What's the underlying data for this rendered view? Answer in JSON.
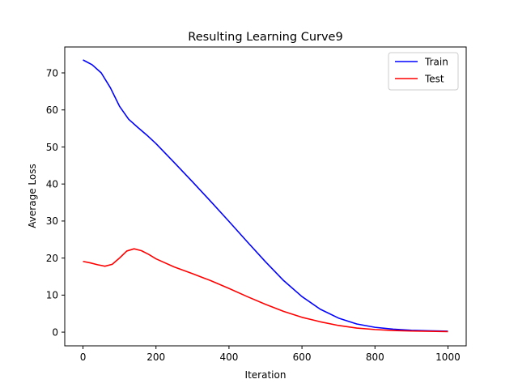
{
  "chart_data": {
    "type": "line",
    "title": "Resulting Learning Curve9",
    "xlabel": "Iteration",
    "ylabel": "Average Loss",
    "xlim": [
      -50,
      1050
    ],
    "ylim": [
      -3.7,
      77
    ],
    "xticks": [
      0,
      200,
      400,
      600,
      800,
      1000
    ],
    "yticks": [
      0,
      10,
      20,
      30,
      40,
      50,
      60,
      70
    ],
    "grid": false,
    "legend_position": "top-right",
    "series": [
      {
        "name": "Train",
        "color": "#0000ff",
        "points": [
          [
            0,
            73.5
          ],
          [
            25,
            72.2
          ],
          [
            50,
            70.0
          ],
          [
            75,
            66.0
          ],
          [
            100,
            61.0
          ],
          [
            125,
            57.5
          ],
          [
            150,
            55.3
          ],
          [
            175,
            53.2
          ],
          [
            200,
            50.9
          ],
          [
            250,
            45.8
          ],
          [
            300,
            40.6
          ],
          [
            350,
            35.3
          ],
          [
            400,
            29.9
          ],
          [
            450,
            24.4
          ],
          [
            500,
            19.0
          ],
          [
            550,
            13.9
          ],
          [
            600,
            9.6
          ],
          [
            650,
            6.2
          ],
          [
            700,
            3.8
          ],
          [
            750,
            2.2
          ],
          [
            800,
            1.3
          ],
          [
            850,
            0.8
          ],
          [
            900,
            0.5
          ],
          [
            950,
            0.35
          ],
          [
            1000,
            0.25
          ]
        ]
      },
      {
        "name": "Test",
        "color": "#ff0000",
        "points": [
          [
            0,
            19.1
          ],
          [
            20,
            18.7
          ],
          [
            40,
            18.2
          ],
          [
            60,
            17.8
          ],
          [
            80,
            18.3
          ],
          [
            100,
            20.0
          ],
          [
            120,
            21.9
          ],
          [
            140,
            22.5
          ],
          [
            160,
            22.0
          ],
          [
            180,
            21.0
          ],
          [
            200,
            19.8
          ],
          [
            250,
            17.6
          ],
          [
            300,
            15.8
          ],
          [
            350,
            13.9
          ],
          [
            400,
            11.8
          ],
          [
            450,
            9.6
          ],
          [
            500,
            7.5
          ],
          [
            550,
            5.6
          ],
          [
            600,
            4.0
          ],
          [
            650,
            2.8
          ],
          [
            700,
            1.8
          ],
          [
            750,
            1.1
          ],
          [
            800,
            0.7
          ],
          [
            850,
            0.45
          ],
          [
            900,
            0.3
          ],
          [
            950,
            0.22
          ],
          [
            1000,
            0.15
          ]
        ]
      }
    ]
  }
}
